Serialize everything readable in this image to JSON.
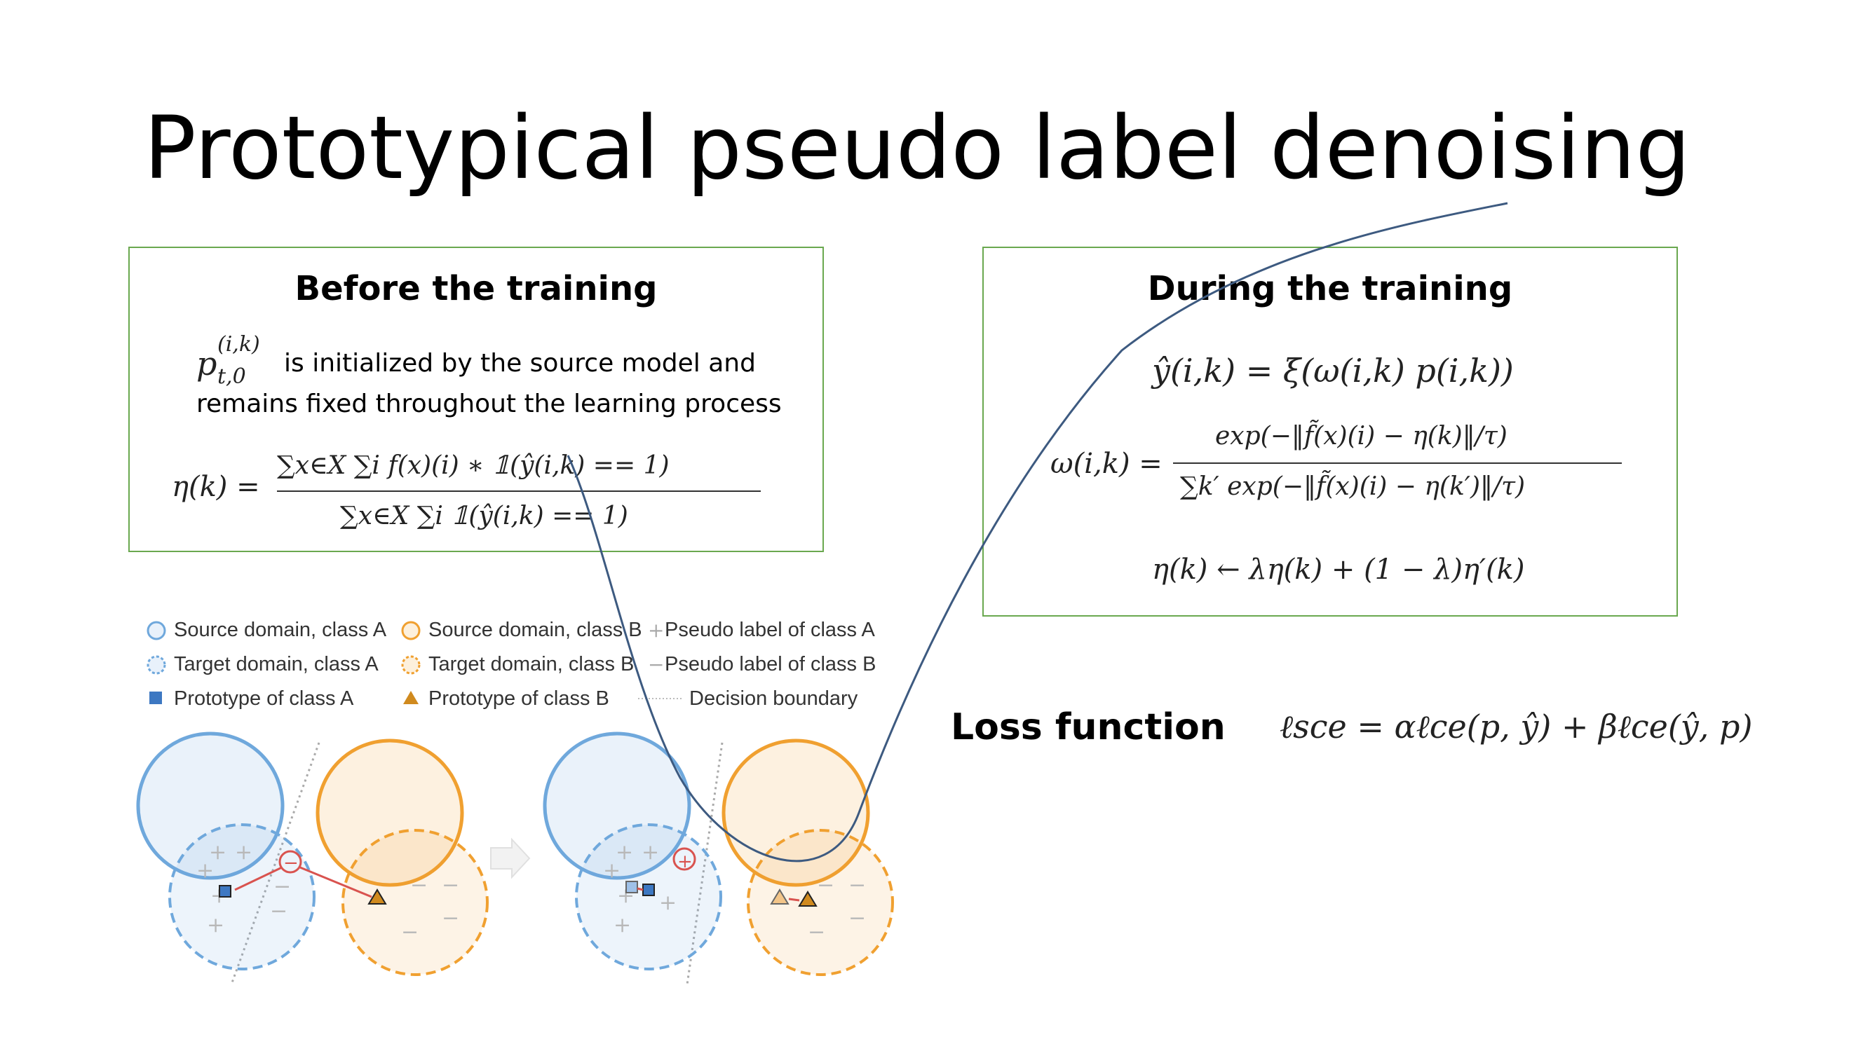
{
  "slide": {
    "title": "Prototypical pseudo label denoising"
  },
  "before_box": {
    "heading": "Before the training",
    "p_symbol": "p",
    "p_sup": "(i,k)",
    "p_sub": "t,0",
    "line1": "is initialized by the source model and",
    "line2": "remains fixed throughout the learning process",
    "eq_lhs": "η(k) =",
    "eq_numerator": "∑x∈X ∑i f(x)(i) ∗ 𝟙(ŷ(i,k) == 1)",
    "eq_denominator": "∑x∈X ∑i 𝟙(ŷ(i,k) == 1)"
  },
  "during_box": {
    "heading": "During the training",
    "eq1": "ŷ(i,k) = ξ(ω(i,k) p(i,k))",
    "eq2_lhs": "ω(i,k) =",
    "eq2_numerator": "exp(−‖f̃(x)(i) − η(k)‖/τ)",
    "eq2_denominator": "∑k′ exp(−‖f̃(x)(i) − η(k′)‖/τ)",
    "eq3": "η(k) ← λη(k) + (1 − λ)η′(k)"
  },
  "loss": {
    "label": "Loss function",
    "equation": "ℓsce = αℓce(p, ŷ) + βℓce(ŷ, p)"
  },
  "legend": {
    "items": [
      {
        "label": "Source domain, class A",
        "icon": "circle-solid-blue"
      },
      {
        "label": "Source domain, class B",
        "icon": "circle-solid-orange"
      },
      {
        "label": "Pseudo label of class A",
        "icon": "plus-gray"
      },
      {
        "label": "Target domain, class A",
        "icon": "circle-dashed-blue"
      },
      {
        "label": "Target domain, class B",
        "icon": "circle-dashed-orange"
      },
      {
        "label": "Pseudo label of class B",
        "icon": "minus-gray"
      },
      {
        "label": "Prototype of class A",
        "icon": "square-blue"
      },
      {
        "label": "Prototype of class B",
        "icon": "triangle-orange"
      },
      {
        "label": "Decision boundary",
        "icon": "dotted-line"
      }
    ]
  },
  "colors": {
    "box_border": "#6aa84f",
    "class_a": "#6fa8dc",
    "class_b": "#f0a030",
    "arrow": "#d9534f",
    "curve": "#3d5a80"
  }
}
